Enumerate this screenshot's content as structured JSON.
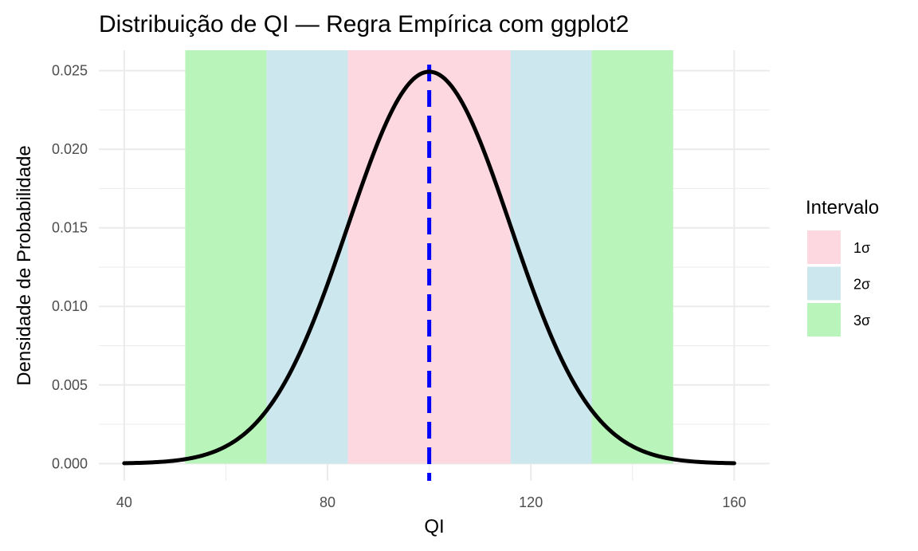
{
  "chart_data": {
    "type": "area",
    "title": "Distribuição de QI — Regra Empírica com ggplot2",
    "xlabel": "QI",
    "ylabel": "Densidade de Probabilidade",
    "xlim": [
      35,
      167
    ],
    "ylim": [
      -0.0011,
      0.0263
    ],
    "x_ticks": [
      40,
      80,
      120,
      160
    ],
    "x_tick_labels": [
      "40",
      "80",
      "120",
      "160"
    ],
    "x_minor_ticks": [
      60,
      100,
      140
    ],
    "y_ticks": [
      0,
      0.005,
      0.01,
      0.015,
      0.02,
      0.025
    ],
    "y_tick_labels": [
      "0.000",
      "0.005",
      "0.010",
      "0.015",
      "0.020",
      "0.025"
    ],
    "y_minor_ticks": [
      0.0025,
      0.0075,
      0.0125,
      0.0175,
      0.0225
    ],
    "grid": true,
    "curve": {
      "distribution": "normal",
      "mean": 100,
      "sd": 16,
      "x_range": [
        40,
        160
      ],
      "color": "#000000"
    },
    "mean_line": {
      "x": 100,
      "color": "#0000ff",
      "style": "dashed"
    },
    "bands": [
      {
        "label": "3σ",
        "x": [
          52,
          148
        ],
        "color": "#b9f5bb"
      },
      {
        "label": "2σ",
        "x": [
          68,
          132
        ],
        "color": "#cde7ef"
      },
      {
        "label": "1σ",
        "x": [
          84,
          116
        ],
        "color": "#fdd8e0"
      }
    ],
    "legend": {
      "title": "Intervalo",
      "position": "right",
      "entries": [
        {
          "label": "1σ",
          "color": "#fdd8e0"
        },
        {
          "label": "2σ",
          "color": "#cde7ef"
        },
        {
          "label": "3σ",
          "color": "#b9f5bb"
        }
      ]
    }
  }
}
